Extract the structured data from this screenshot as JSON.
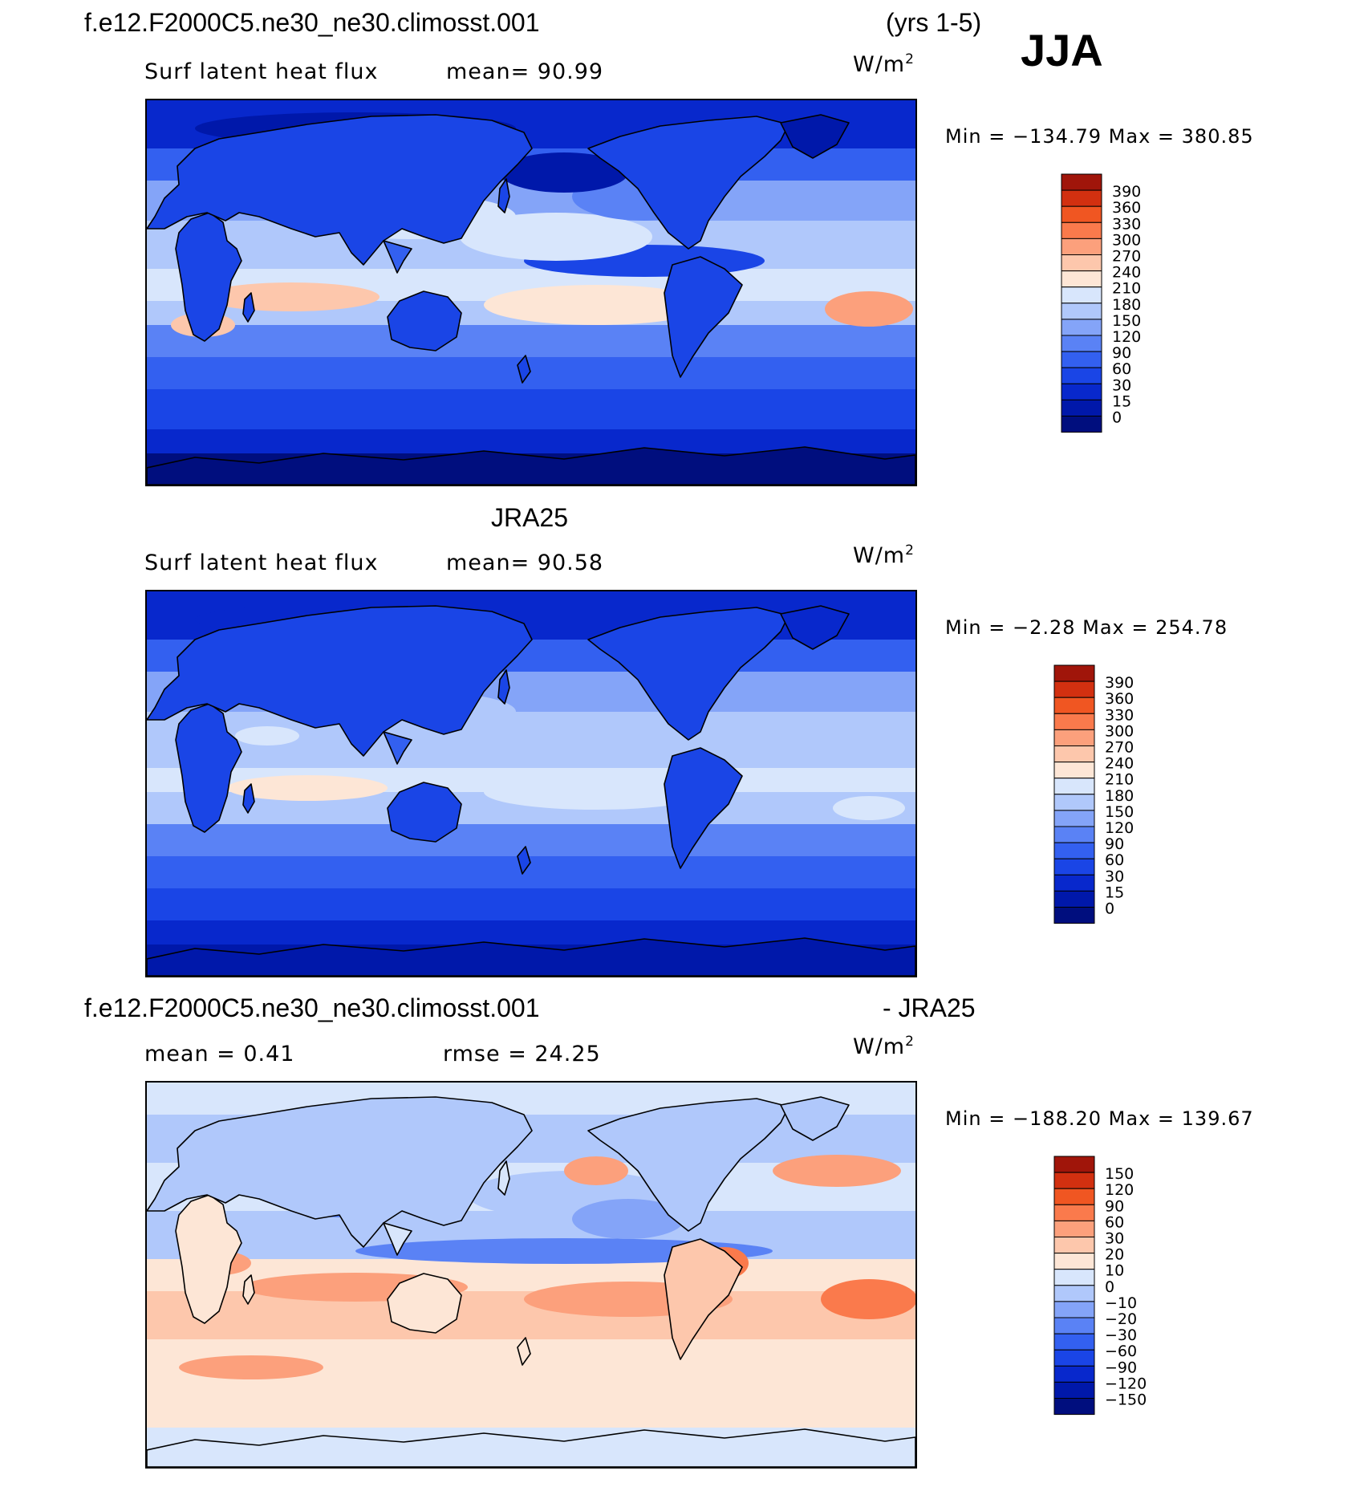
{
  "header": {
    "case_title": "f.e12.F2000C5.ne30_ne30.climosst.001",
    "years": "(yrs 1-5)",
    "season": "JJA"
  },
  "panels": [
    {
      "id": "model",
      "title": "",
      "left_label": "Surf latent heat flux",
      "center_label": "mean=   90.99",
      "units_base": "W/m",
      "units_sup": "2",
      "minmax": "Min = −134.79 Max = 380.85",
      "palette": "absolute"
    },
    {
      "id": "obs",
      "title": "JRA25",
      "left_label": "Surf latent heat flux",
      "center_label": "mean=   90.58",
      "units_base": "W/m",
      "units_sup": "2",
      "minmax": "Min =   −2.28 Max = 254.78",
      "palette": "absolute"
    },
    {
      "id": "diff",
      "title_left": "f.e12.F2000C5.ne30_ne30.climosst.001",
      "title_right": "- JRA25",
      "left_label": "mean =    0.41",
      "center_label": "rmse =   24.25",
      "units_base": "W/m",
      "units_sup": "2",
      "minmax": "Min = −188.20 Max = 139.67",
      "palette": "difference"
    }
  ],
  "chart_data": [
    {
      "type": "heatmap",
      "title": "f.e12.F2000C5.ne30_ne30.climosst.001 (yrs 1-5) JJA",
      "variable": "Surf latent heat flux",
      "units": "W/m^2",
      "mean": 90.99,
      "min": -134.79,
      "max": 380.85,
      "colorbar_levels": [
        0,
        15,
        30,
        60,
        90,
        120,
        150,
        180,
        210,
        240,
        270,
        300,
        330,
        360,
        390
      ],
      "colorbar_colors": [
        "#000e7e",
        "#0018aa",
        "#0828cc",
        "#1a45e6",
        "#3360f0",
        "#5a82f5",
        "#84a4f8",
        "#b0c8fb",
        "#d8e6fc",
        "#fde6d6",
        "#fdc7ac",
        "#fca07c",
        "#fa7a4c",
        "#f05622",
        "#d23010",
        "#a0150a"
      ]
    },
    {
      "type": "heatmap",
      "title": "JRA25",
      "variable": "Surf latent heat flux",
      "units": "W/m^2",
      "mean": 90.58,
      "min": -2.28,
      "max": 254.78,
      "colorbar_levels": [
        0,
        15,
        30,
        60,
        90,
        120,
        150,
        180,
        210,
        240,
        270,
        300,
        330,
        360,
        390
      ],
      "colorbar_colors": [
        "#000e7e",
        "#0018aa",
        "#0828cc",
        "#1a45e6",
        "#3360f0",
        "#5a82f5",
        "#84a4f8",
        "#b0c8fb",
        "#d8e6fc",
        "#fde6d6",
        "#fdc7ac",
        "#fca07c",
        "#fa7a4c",
        "#f05622",
        "#d23010",
        "#a0150a"
      ]
    },
    {
      "type": "heatmap",
      "title": "f.e12.F2000C5.ne30_ne30.climosst.001 - JRA25",
      "units": "W/m^2",
      "mean": 0.41,
      "rmse": 24.25,
      "min": -188.2,
      "max": 139.67,
      "colorbar_levels": [
        -150,
        -120,
        -90,
        -60,
        -30,
        -20,
        -10,
        0,
        10,
        20,
        30,
        60,
        90,
        120,
        150
      ],
      "colorbar_colors": [
        "#000e7e",
        "#0018aa",
        "#0828cc",
        "#1a45e6",
        "#3360f0",
        "#5a82f5",
        "#84a4f8",
        "#b0c8fb",
        "#d8e6fc",
        "#fde6d6",
        "#fdc7ac",
        "#fca07c",
        "#fa7a4c",
        "#f05622",
        "#d23010",
        "#a0150a"
      ]
    }
  ]
}
